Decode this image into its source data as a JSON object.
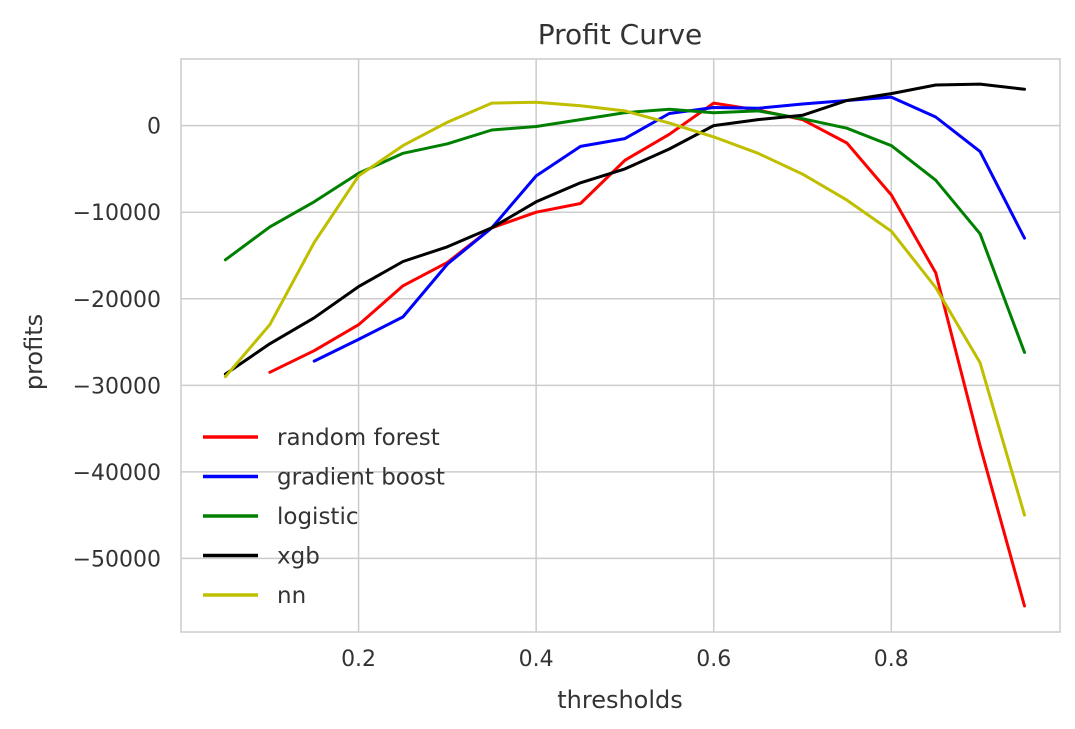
{
  "chart_data": {
    "type": "line",
    "title": "Profit Curve",
    "xlabel": "thresholds",
    "ylabel": "profits",
    "xlim": [
      0.0,
      0.99
    ],
    "ylim": [
      -58500,
      7700
    ],
    "xticks": [
      0.2,
      0.4,
      0.6,
      0.8
    ],
    "xtick_labels": [
      "0.2",
      "0.4",
      "0.6",
      "0.8"
    ],
    "yticks": [
      0,
      -10000,
      -20000,
      -30000,
      -40000,
      -50000
    ],
    "ytick_labels": [
      "0",
      "−10000",
      "−20000",
      "−30000",
      "−40000",
      "−50000"
    ],
    "grid": true,
    "legend_position": "lower-left",
    "series": [
      {
        "name": "random forest",
        "color": "#ff0000",
        "x": [
          0.1,
          0.15,
          0.2,
          0.25,
          0.3,
          0.35,
          0.4,
          0.45,
          0.5,
          0.55,
          0.6,
          0.65,
          0.7,
          0.75,
          0.8,
          0.85,
          0.9,
          0.95
        ],
        "y": [
          -28500,
          -26000,
          -23000,
          -18500,
          -15800,
          -11800,
          -10000,
          -9000,
          -4000,
          -1000,
          2600,
          1800,
          700,
          -2000,
          -8000,
          -17000,
          -37000,
          -55500
        ]
      },
      {
        "name": "gradient boost",
        "color": "#0000ff",
        "x": [
          0.15,
          0.2,
          0.25,
          0.3,
          0.35,
          0.4,
          0.45,
          0.5,
          0.55,
          0.6,
          0.65,
          0.7,
          0.75,
          0.8,
          0.85,
          0.9,
          0.95
        ],
        "y": [
          -27200,
          -24700,
          -22100,
          -16000,
          -11800,
          -5800,
          -2400,
          -1500,
          1400,
          2100,
          2000,
          2500,
          2900,
          3300,
          1000,
          -3000,
          -13000
        ]
      },
      {
        "name": "logistic",
        "color": "#008000",
        "x": [
          0.05,
          0.1,
          0.15,
          0.2,
          0.25,
          0.3,
          0.35,
          0.4,
          0.45,
          0.5,
          0.55,
          0.6,
          0.65,
          0.7,
          0.75,
          0.8,
          0.85,
          0.9,
          0.95
        ],
        "y": [
          -15500,
          -11700,
          -8800,
          -5500,
          -3200,
          -2100,
          -500,
          -100,
          700,
          1500,
          1900,
          1500,
          1700,
          800,
          -300,
          -2300,
          -6300,
          -12500,
          -26200
        ]
      },
      {
        "name": "xgb",
        "color": "#000000",
        "x": [
          0.05,
          0.1,
          0.15,
          0.2,
          0.25,
          0.3,
          0.35,
          0.4,
          0.45,
          0.5,
          0.55,
          0.6,
          0.65,
          0.7,
          0.75,
          0.8,
          0.85,
          0.9,
          0.95
        ],
        "y": [
          -28700,
          -25200,
          -22200,
          -18600,
          -15700,
          -14000,
          -11800,
          -8800,
          -6600,
          -5000,
          -2700,
          0,
          700,
          1200,
          2900,
          3700,
          4700,
          4800,
          4200
        ]
      },
      {
        "name": "nn",
        "color": "#bfbf00",
        "x": [
          0.05,
          0.1,
          0.15,
          0.2,
          0.25,
          0.3,
          0.35,
          0.4,
          0.45,
          0.5,
          0.55,
          0.6,
          0.65,
          0.7,
          0.75,
          0.8,
          0.85,
          0.9,
          0.95
        ],
        "y": [
          -29000,
          -23000,
          -13500,
          -5800,
          -2300,
          400,
          2600,
          2700,
          2300,
          1700,
          300,
          -1300,
          -3200,
          -5600,
          -8600,
          -12200,
          -18700,
          -27400,
          -45000
        ]
      }
    ]
  }
}
